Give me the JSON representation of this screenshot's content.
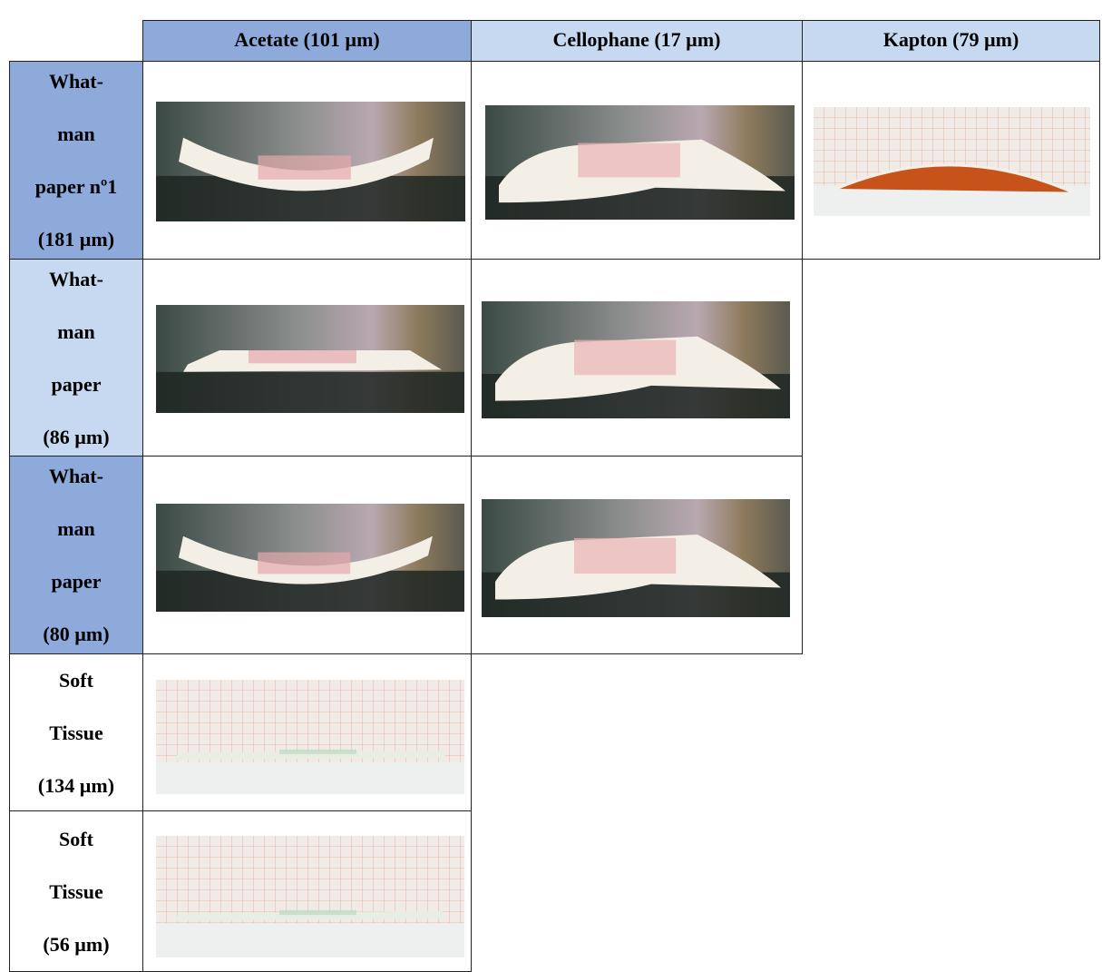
{
  "table": {
    "header": [
      "Acetate (101 µm)",
      "Cellophane (17 µm)",
      "Kapton (79 µm)"
    ],
    "rows": [
      {
        "label": [
          "What-",
          "man",
          "paper nº1",
          "(181 µm)"
        ]
      },
      {
        "label": [
          "What-",
          "man",
          "paper",
          "(86 µm)"
        ]
      },
      {
        "label": [
          "What-",
          "man",
          "paper",
          "(80 µm)"
        ]
      },
      {
        "label": [
          "Soft",
          "Tissue",
          "(134 µm)"
        ]
      },
      {
        "label": [
          "Soft",
          "Tissue",
          "(56 µm)"
        ]
      }
    ]
  }
}
